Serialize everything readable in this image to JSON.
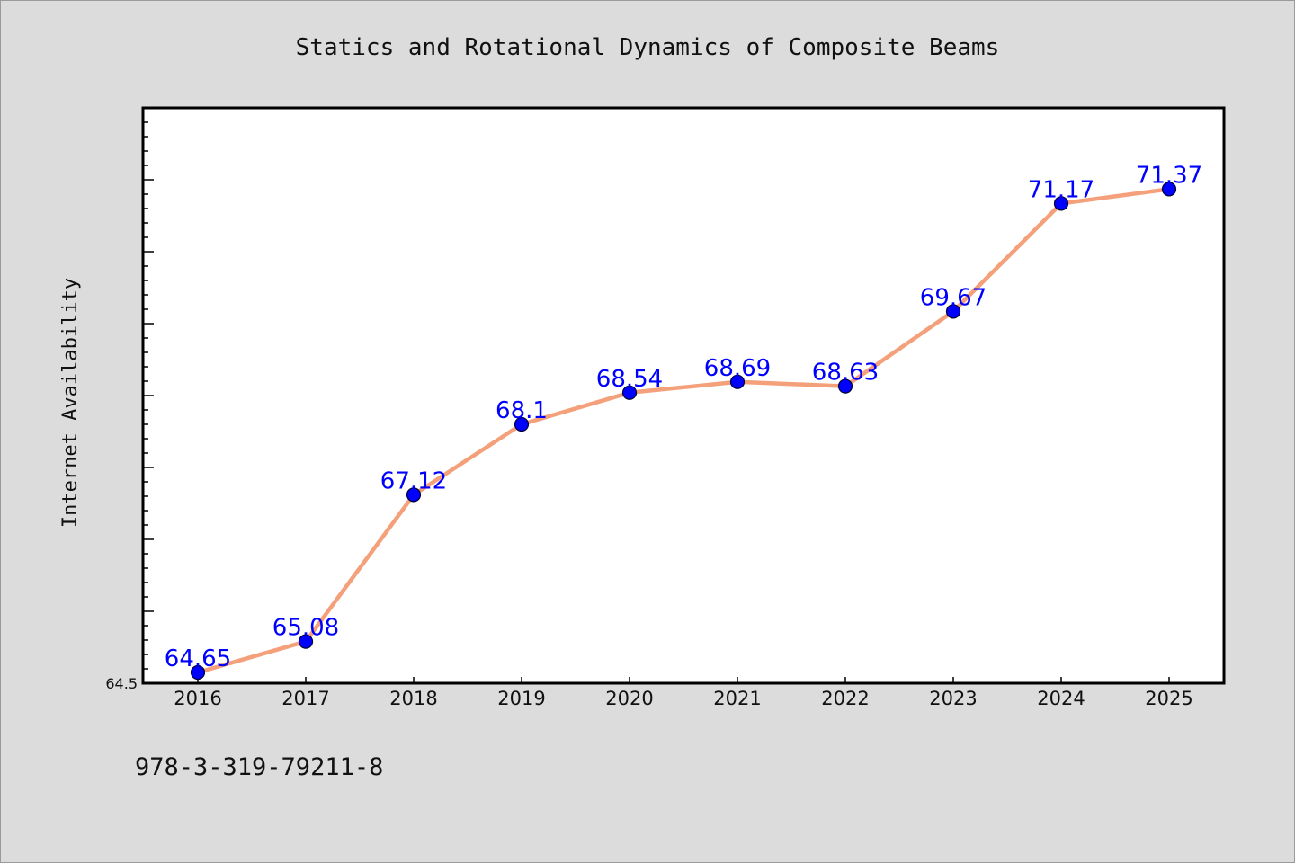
{
  "chart_data": {
    "type": "line",
    "title": "Statics and Rotational Dynamics of Composite Beams",
    "xlabel": "",
    "ylabel": "Internet Availability",
    "categories": [
      "2016",
      "2017",
      "2018",
      "2019",
      "2020",
      "2021",
      "2022",
      "2023",
      "2024",
      "2025"
    ],
    "values": [
      64.65,
      65.08,
      67.12,
      68.1,
      68.54,
      68.69,
      68.63,
      69.67,
      71.17,
      71.37
    ],
    "data_labels": [
      "64.65",
      "65.08",
      "67.12",
      "68.1",
      "68.54",
      "68.69",
      "68.63",
      "69.67",
      "71.17",
      "71.37"
    ],
    "y_tick_labels": [
      "64.5"
    ],
    "ylim": [
      64.5,
      72.5
    ],
    "grid": false,
    "legend": "none",
    "colors": {
      "line": "#f4a07a",
      "marker": "#0000ff",
      "marker_edge": "#000033",
      "data_label": "#0000ff",
      "plot_background": "#ffffff",
      "figure_background": "#dcdcdc"
    }
  },
  "footer": {
    "isbn": "978-3-319-79211-8"
  }
}
